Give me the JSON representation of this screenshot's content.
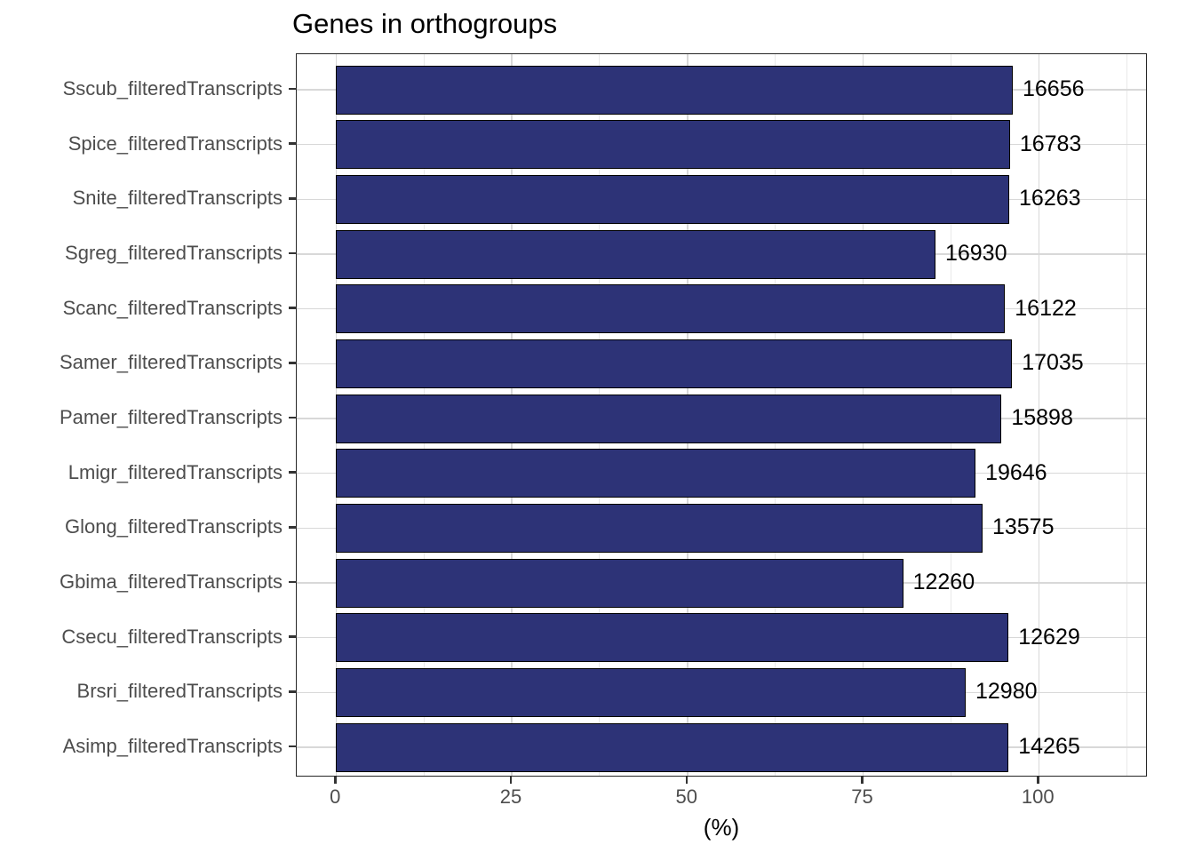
{
  "chart_data": {
    "type": "bar",
    "orientation": "horizontal",
    "title": "Genes in orthogroups",
    "xlabel": "(%)",
    "ylabel": "",
    "legend": "none",
    "grid": "vertical major+minor, horizontal major at category centers",
    "categories": [
      "Sscub_filteredTranscripts",
      "Spice_filteredTranscripts",
      "Snite_filteredTranscripts",
      "Sgreg_filteredTranscripts",
      "Scanc_filteredTranscripts",
      "Samer_filteredTranscripts",
      "Pamer_filteredTranscripts",
      "Lmigr_filteredTranscripts",
      "Glong_filteredTranscripts",
      "Gbima_filteredTranscripts",
      "Csecu_filteredTranscripts",
      "Brsri_filteredTranscripts",
      "Asimp_filteredTranscripts"
    ],
    "values_pct": [
      96.3,
      95.9,
      95.8,
      85.3,
      95.2,
      96.2,
      94.7,
      91.0,
      92.0,
      80.7,
      95.7,
      89.6,
      95.7
    ],
    "bar_value_labels": [
      "16656",
      "16783",
      "16263",
      "16930",
      "16122",
      "17035",
      "15898",
      "19646",
      "13575",
      "12260",
      "12629",
      "12980",
      "14265"
    ],
    "xticks": [
      "0",
      "25",
      "50",
      "75",
      "100"
    ],
    "xtick_values": [
      0,
      25,
      50,
      75,
      100
    ],
    "x_minor_gridlines": [
      12.5,
      37.5,
      62.5,
      87.5,
      112.5
    ],
    "xlim": [
      -5.5,
      115.5
    ],
    "colors": {
      "bar_fill": "#2d3377",
      "bar_border": "#000000",
      "panel_border": "#262626",
      "grid_major": "#d8d8d8",
      "grid_minor": "#e9e9e9",
      "axis_text": "#4d4d4d",
      "title_text": "#000000",
      "axis_title_text": "#000000",
      "value_label_text": "#000000",
      "tick_mark": "#333333",
      "background": "#ffffff"
    }
  }
}
